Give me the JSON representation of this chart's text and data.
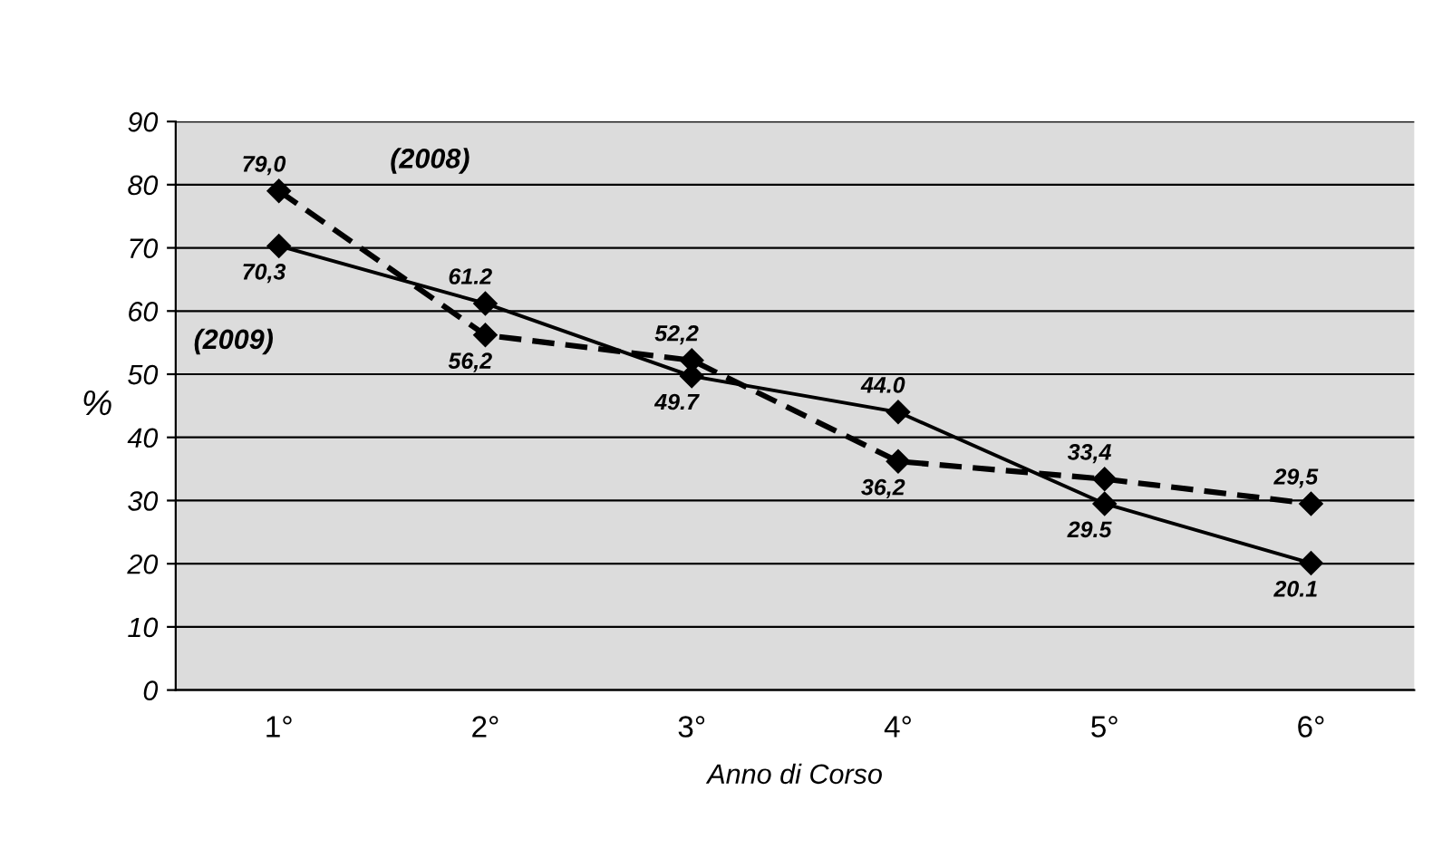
{
  "chart_data": {
    "type": "line",
    "xlabel": "Anno di Corso",
    "ylabel": "%",
    "categories": [
      "1°",
      "2°",
      "3°",
      "4°",
      "5°",
      "6°"
    ],
    "ylim": [
      0,
      90
    ],
    "yticks": [
      0,
      10,
      20,
      30,
      40,
      50,
      60,
      70,
      80,
      90
    ],
    "grid": "y",
    "marker": "diamond",
    "series": [
      {
        "name": "(2008)",
        "color": "#000000",
        "line_style": "dashed",
        "values": [
          79.0,
          56.2,
          52.2,
          36.2,
          33.4,
          29.5
        ],
        "value_labels": [
          "79,0",
          "56,2",
          "52,2",
          "36,2",
          "33,4",
          "29,5"
        ]
      },
      {
        "name": "(2009)",
        "color": "#000000",
        "line_style": "solid",
        "values": [
          70.3,
          61.2,
          49.7,
          44.0,
          29.5,
          20.1
        ],
        "value_labels": [
          "70,3",
          "61.2",
          "49.7",
          "44.0",
          "29.5",
          "20.1"
        ]
      }
    ]
  }
}
